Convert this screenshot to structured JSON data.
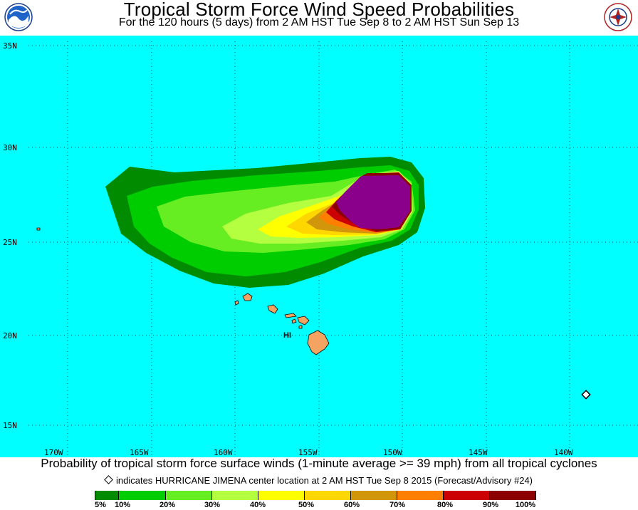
{
  "header": {
    "title": "Tropical Storm Force Wind Speed Probabilities",
    "subtitle": "For the 120 hours (5 days) from 2 AM HST Tue Sep 8 to 2 AM HST Sun Sep 13",
    "left_logo_icon": "noaa-logo-icon",
    "right_logo_icon": "national-weather-service-logo-icon"
  },
  "map": {
    "background_color": "#00ffff",
    "grid": "dotted",
    "latitude_labels": [
      "35N",
      "30N",
      "25N",
      "20N",
      "15N"
    ],
    "longitude_labels": [
      "170W",
      "165W",
      "160W",
      "155W",
      "150W",
      "145W",
      "140W"
    ],
    "island_label": "HI",
    "land_color": "#f4a460"
  },
  "caption": {
    "text": "Probability of tropical storm force surface winds (1-minute average >= 39 mph) from all tropical cyclones",
    "note": "indicates HURRICANE JIMENA center location at 2 AM HST Tue Sep 8 2015 (Forecast/Advisory #24)",
    "marker_icon": "diamond-marker-icon"
  },
  "legend": {
    "ticks": [
      "5%",
      "10%",
      "20%",
      "30%",
      "40%",
      "50%",
      "60%",
      "70%",
      "80%",
      "90%",
      "100%"
    ],
    "colors": [
      "#008b00",
      "#00cd00",
      "#66ee22",
      "#b4ff40",
      "#ffff00",
      "#ffd700",
      "#d2960a",
      "#ff8000",
      "#cc0000",
      "#8b0000",
      "#8b008b"
    ]
  }
}
